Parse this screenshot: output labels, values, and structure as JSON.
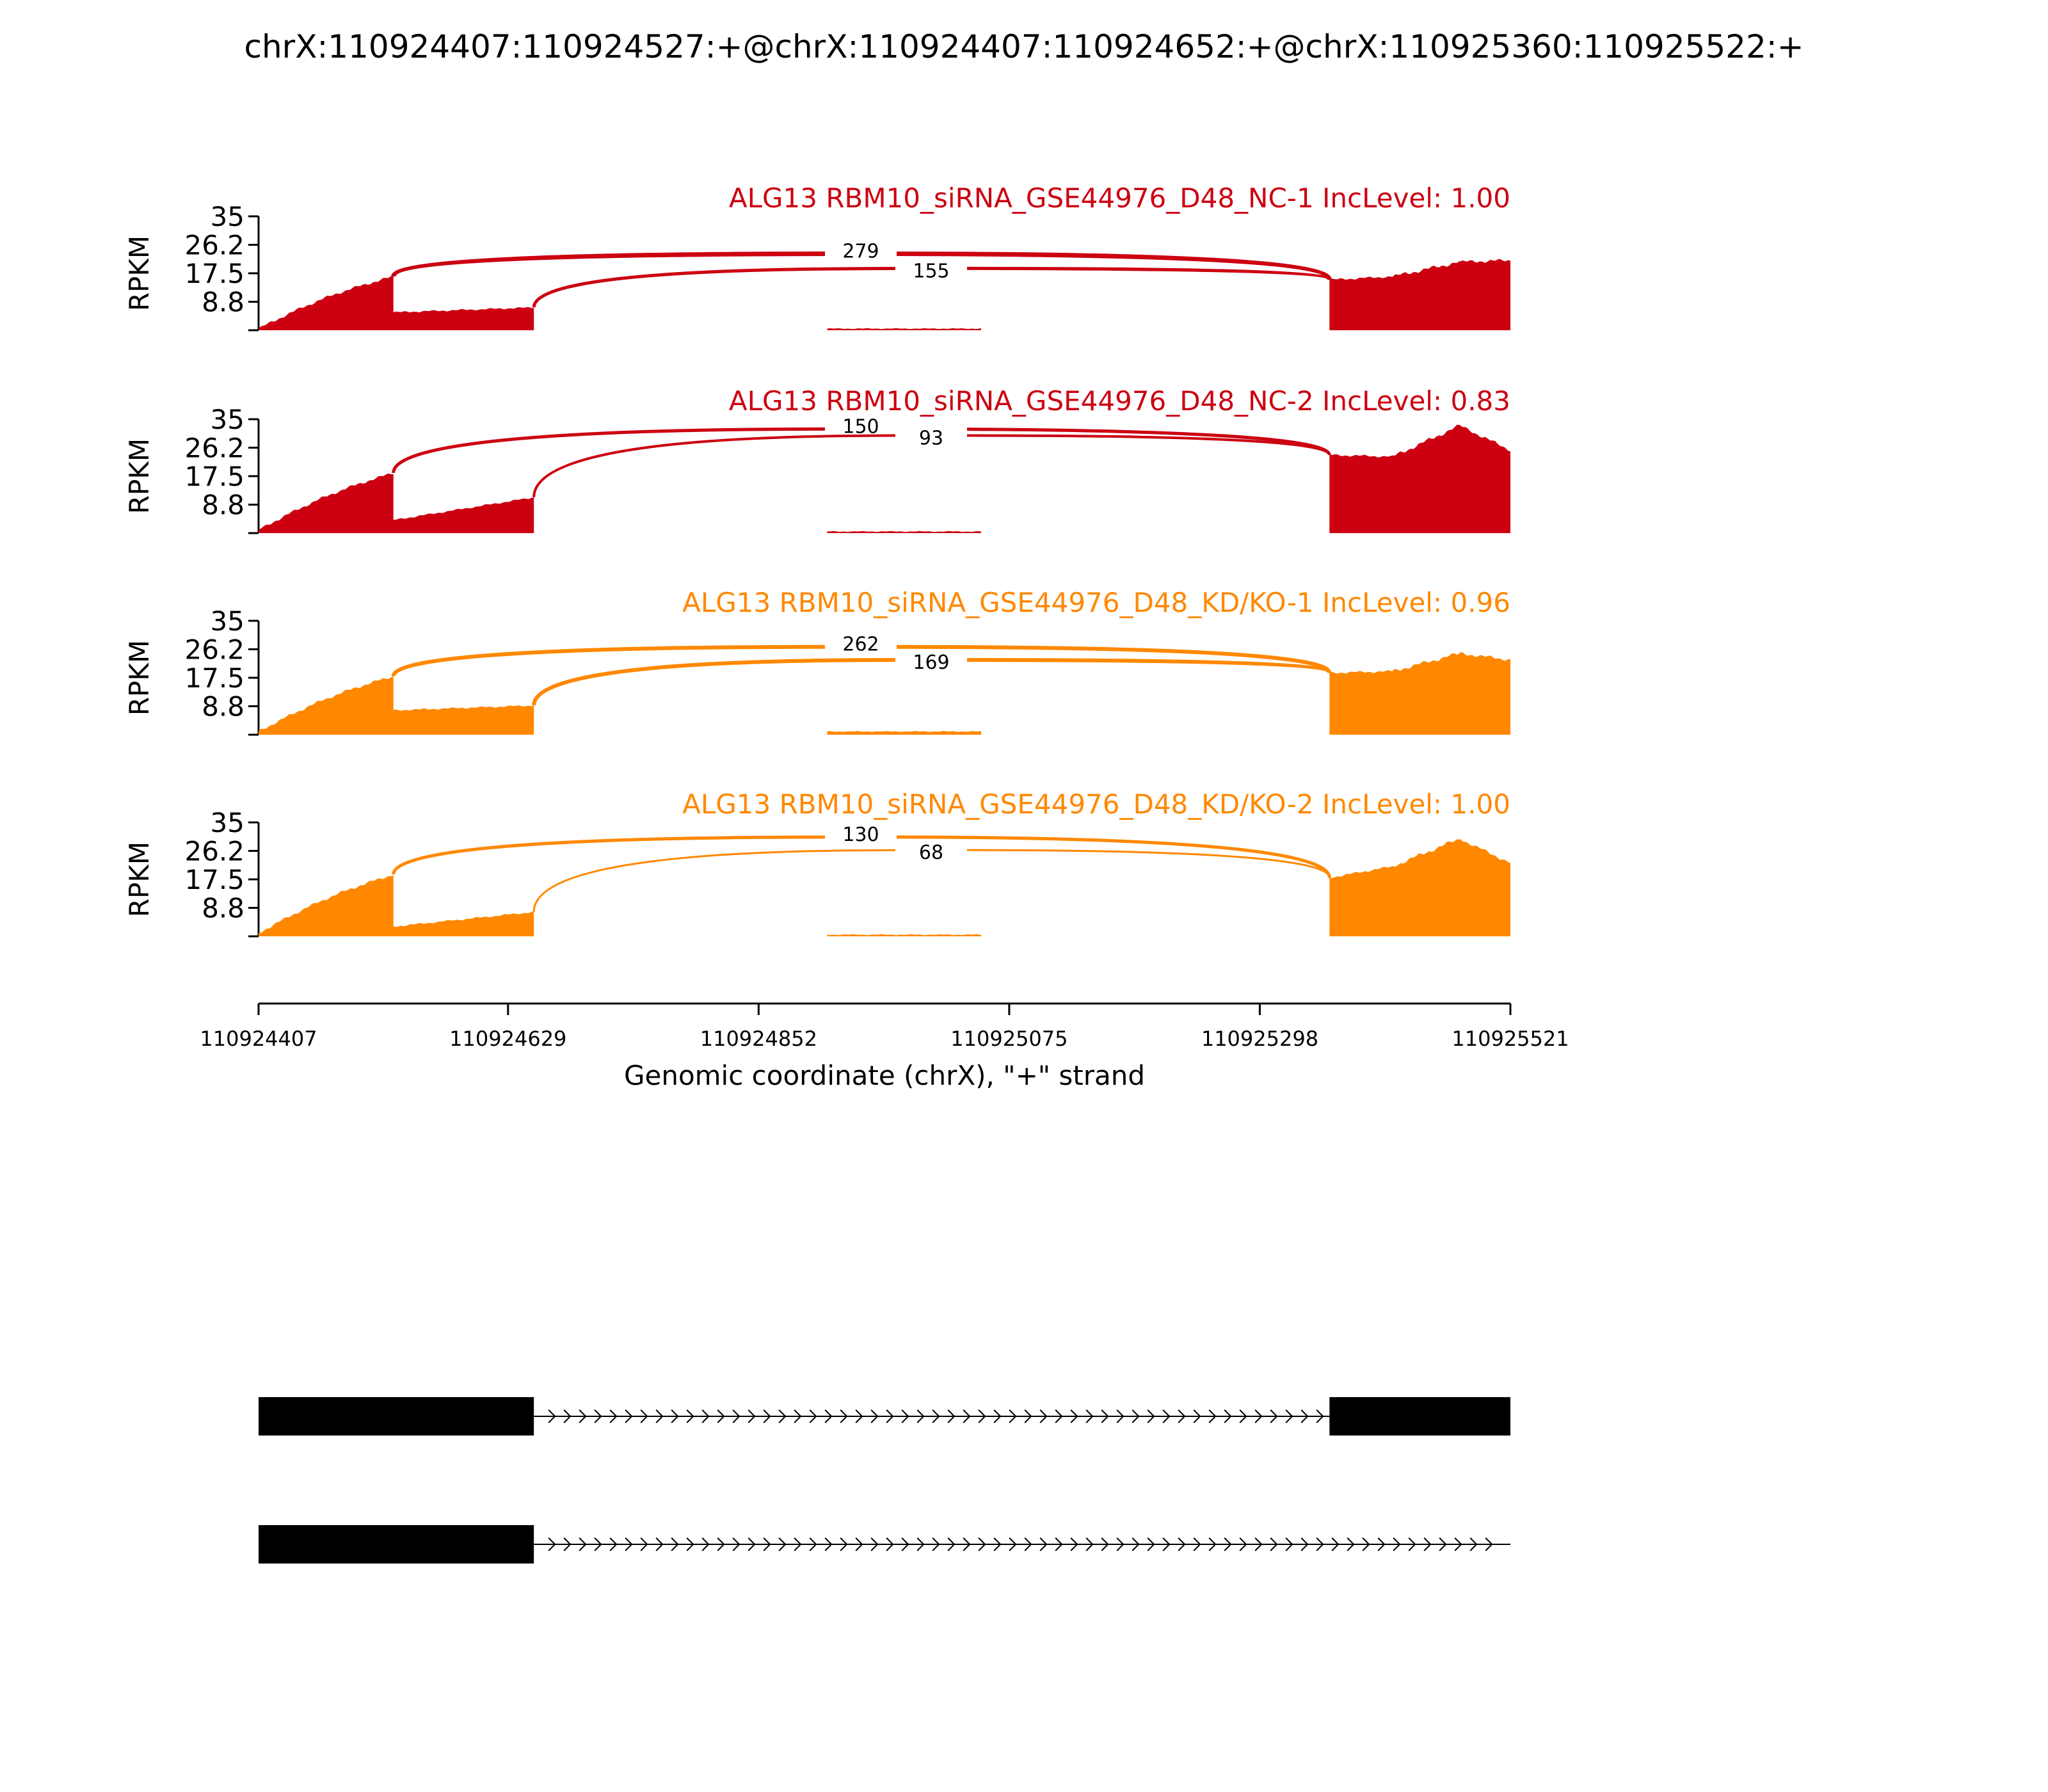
{
  "chart_data": {
    "type": "area",
    "title": "chrX:110924407:110924527:+@chrX:110924407:110924652:+@chrX:110925360:110925522:+",
    "xlabel": "Genomic coordinate (chrX), \"+\" strand",
    "ylabel": "RPKM",
    "xlim": [
      110924407,
      110925521
    ],
    "x_ticks": [
      110924407,
      110924629,
      110924852,
      110925075,
      110925298,
      110925521
    ],
    "x_tick_labels": [
      "110924407",
      "110924629",
      "110924852",
      "110925075",
      "110925298",
      "110925521"
    ],
    "ylim": [
      0,
      35
    ],
    "y_tick_labels": [
      "8.8",
      "17.5",
      "26.2",
      "35"
    ],
    "exons": {
      "exon1": [
        110924407,
        110924527
      ],
      "exon_long": [
        110924407,
        110924652
      ],
      "middle_region": [
        110924913,
        110925050
      ],
      "exon3": [
        110925360,
        110925521
      ]
    },
    "junctions": {
      "j1": [
        110924527,
        110925360
      ],
      "j2": [
        110924652,
        110925360
      ]
    },
    "series": [
      {
        "name": "ALG13 RBM10_siRNA_GSE44976_D48_NC-1 IncLevel: 1.00",
        "color": "#cc0011",
        "coverage": {
          "exon1_start": 0.5,
          "exon1_end": 16.5,
          "exon2_start": 5.5,
          "exon2_end": 7.0,
          "middle": 0.5,
          "exon3_start": 15.5,
          "exon3_mid": 16.5,
          "exon3_peak": 21.0,
          "exon3_end": 21.5
        },
        "junctions": [
          {
            "count": "279",
            "top": 23.5,
            "width": 7
          },
          {
            "count": "155",
            "top": 19.0,
            "width": 5
          }
        ]
      },
      {
        "name": "ALG13 RBM10_siRNA_GSE44976_D48_NC-2 IncLevel: 0.83",
        "color": "#cc0011",
        "coverage": {
          "exon1_start": 1.0,
          "exon1_end": 18.5,
          "exon2_start": 4.0,
          "exon2_end": 11.0,
          "middle": 0.5,
          "exon3_start": 24.0,
          "exon3_mid": 23.5,
          "exon3_peak": 33.0,
          "exon3_end": 25.5
        },
        "junctions": [
          {
            "count": "150",
            "top": 32.0,
            "width": 5
          },
          {
            "count": "93",
            "top": 30.0,
            "width": 4
          }
        ]
      },
      {
        "name": "ALG13 RBM10_siRNA_GSE44976_D48_KD/KO-1 IncLevel: 0.96",
        "color": "#ff8800",
        "coverage": {
          "exon1_start": 1.0,
          "exon1_end": 18.0,
          "exon2_start": 7.5,
          "exon2_end": 9.0,
          "middle": 1.0,
          "exon3_start": 19.0,
          "exon3_mid": 19.5,
          "exon3_peak": 25.0,
          "exon3_end": 23.0
        },
        "junctions": [
          {
            "count": "262",
            "top": 27.0,
            "width": 6
          },
          {
            "count": "169",
            "top": 23.0,
            "width": 6
          }
        ]
      },
      {
        "name": "ALG13 RBM10_siRNA_GSE44976_D48_KD/KO-2 IncLevel: 1.00",
        "color": "#ff8800",
        "coverage": {
          "exon1_start": 1.0,
          "exon1_end": 19.0,
          "exon2_start": 3.0,
          "exon2_end": 7.5,
          "middle": 0.5,
          "exon3_start": 18.0,
          "exon3_mid": 21.5,
          "exon3_peak": 30.0,
          "exon3_end": 22.5
        },
        "junctions": [
          {
            "count": "130",
            "top": 30.5,
            "width": 5
          },
          {
            "count": "68",
            "top": 26.5,
            "width": 3
          }
        ]
      }
    ],
    "transcripts": [
      {
        "blocks": [
          [
            110924407,
            110924652
          ],
          [
            110925360,
            110925521
          ]
        ],
        "intron": [
          110924652,
          110925360
        ]
      },
      {
        "blocks": [
          [
            110924407,
            110924652
          ]
        ],
        "intron": [
          110924652,
          110925521
        ]
      }
    ]
  }
}
